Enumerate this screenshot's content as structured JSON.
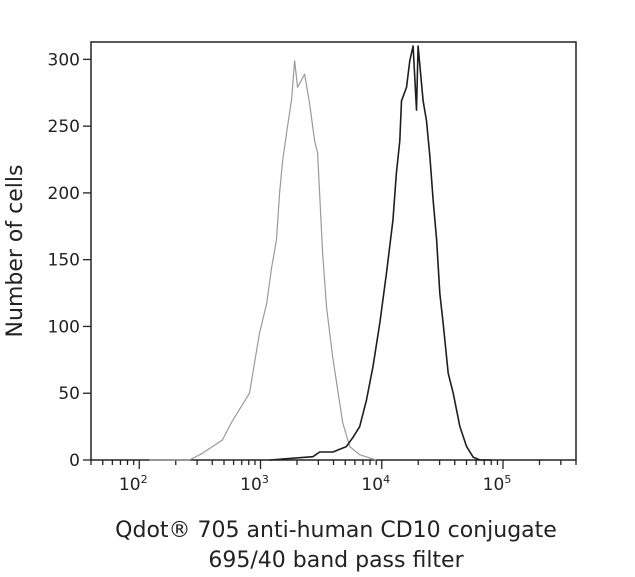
{
  "chart_data": {
    "type": "line",
    "subtype": "histogram-overlay",
    "title": "",
    "xlabel_line1": "Qdot® 705 anti-human CD10 conjugate",
    "xlabel_line2": "695/40 band pass filter",
    "ylabel": "Number of cells",
    "xscale": "log",
    "xlim": [
      40,
      400000
    ],
    "ylim": [
      0,
      313
    ],
    "grid": false,
    "legend": "none",
    "x_ticks": [
      {
        "value": 100,
        "base": "10",
        "exp": "2"
      },
      {
        "value": 1000,
        "base": "10",
        "exp": "3"
      },
      {
        "value": 10000,
        "base": "10",
        "exp": "4"
      },
      {
        "value": 100000,
        "base": "10",
        "exp": "5"
      }
    ],
    "y_ticks": [
      {
        "value": 0,
        "label": "0"
      },
      {
        "value": 50,
        "label": "50"
      },
      {
        "value": 100,
        "label": "100"
      },
      {
        "value": 150,
        "label": "150"
      },
      {
        "value": 200,
        "label": "200"
      },
      {
        "value": 250,
        "label": "250"
      },
      {
        "value": 300,
        "label": "300"
      }
    ],
    "series": [
      {
        "color": "#9a9a9a",
        "x": [
          121,
          259,
          332,
          485,
          575,
          811,
          982,
          1122,
          1234,
          1356,
          1436,
          1521,
          1641,
          1804,
          1910,
          2023,
          2312,
          2543,
          2794,
          2958,
          3252,
          3508,
          3936,
          4761,
          5443,
          6580,
          7658,
          9000
        ],
        "y": [
          0,
          0,
          5,
          15,
          28,
          50,
          95,
          117,
          144,
          165,
          200,
          224,
          245,
          270,
          299,
          279,
          289,
          267,
          239,
          230,
          155,
          114,
          77,
          28,
          10,
          4,
          2,
          0
        ]
      },
      {
        "color": "#1e1e1e",
        "x": [
          1186,
          2704,
          3076,
          3963,
          5105,
          5794,
          6580,
          7480,
          8472,
          9616,
          10940,
          12390,
          13210,
          14090,
          14550,
          16000,
          17020,
          18130,
          19360,
          19950,
          21930,
          23390,
          24950,
          26550,
          28320,
          30140,
          32130,
          35320,
          38820,
          44150,
          50120,
          56850,
          64570,
          80000
        ],
        "y": [
          0,
          2.5,
          6,
          6,
          10,
          17,
          25,
          45,
          70,
          102,
          140,
          180,
          215,
          239,
          269,
          279,
          299,
          310,
          262,
          310,
          269,
          254,
          227,
          194,
          165,
          125,
          102,
          65,
          50,
          25,
          10,
          2,
          0,
          0
        ]
      }
    ]
  }
}
